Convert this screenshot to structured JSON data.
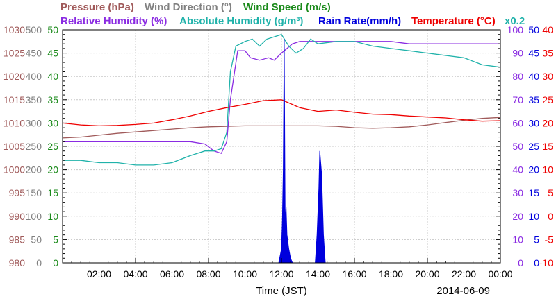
{
  "legend": {
    "row1": [
      {
        "text": "Pressure (hPa)",
        "color": "#a05a5a"
      },
      {
        "text": "Wind Direction (°)",
        "color": "#808080"
      },
      {
        "text": "Wind Speed (m/s)",
        "color": "#1a8a1a"
      }
    ],
    "row2": [
      {
        "text": "Relative Humidity (%)",
        "color": "#8a2be2"
      },
      {
        "text": "Absolute Humidity (g/m³)",
        "color": "#20b2aa"
      },
      {
        "text": "Rain Rate(mm/h)",
        "color": "#0000dd"
      },
      {
        "text": "Temperature (°C)",
        "color": "#ee0000"
      },
      {
        "text": "x0.2",
        "color": "#20b2aa"
      }
    ]
  },
  "chart_data": {
    "type": "line",
    "title": "",
    "xlabel": "Time (JST)",
    "date_label": "2014-06-09",
    "x_ticks": [
      "02:00",
      "04:00",
      "06:00",
      "08:00",
      "10:00",
      "12:00",
      "14:00",
      "16:00",
      "18:00",
      "20:00",
      "22:00",
      "00:00"
    ],
    "x_range_hours": [
      0,
      24
    ],
    "grid": true,
    "axes": {
      "pressure": {
        "label": "Pressure (hPa)",
        "side": "left",
        "range": [
          980,
          1030
        ],
        "ticks": [
          980,
          985,
          990,
          995,
          1000,
          1005,
          1010,
          1015,
          1020,
          1025,
          1030
        ],
        "color": "#a05a5a"
      },
      "wind_direction": {
        "label": "Wind Direction (°)",
        "side": "left",
        "range": [
          0,
          500
        ],
        "ticks": [
          0,
          50,
          100,
          150,
          200,
          250,
          300,
          350,
          400,
          450,
          500
        ],
        "color": "#808080"
      },
      "wind_speed": {
        "label": "Wind Speed (m/s)",
        "side": "left",
        "range": [
          0,
          50
        ],
        "ticks": [
          0,
          5,
          10,
          15,
          20,
          25,
          30,
          35,
          40,
          45,
          50
        ],
        "color": "#1a8a1a"
      },
      "relative_humidity": {
        "label": "Relative Humidity (%)",
        "side": "right",
        "range": [
          0,
          100
        ],
        "ticks": [
          0,
          10,
          20,
          30,
          40,
          50,
          60,
          70,
          80,
          90,
          100
        ],
        "color": "#8a2be2"
      },
      "rain_rate": {
        "label": "Rain Rate(mm/h)",
        "side": "right",
        "range": [
          0,
          50
        ],
        "ticks": [
          0,
          5,
          10,
          15,
          20,
          25,
          30,
          35,
          40,
          45,
          50
        ],
        "color": "#0000dd"
      },
      "temperature": {
        "label": "Temperature (°C)",
        "side": "right",
        "range": [
          -10,
          40
        ],
        "ticks": [
          -10,
          -5,
          0,
          5,
          10,
          15,
          20,
          25,
          30,
          35,
          40
        ],
        "color": "#ee0000"
      }
    },
    "series": [
      {
        "name": "Pressure (hPa)",
        "axis": "pressure",
        "color": "#a05a5a",
        "x": [
          0.0,
          1,
          2,
          3,
          4,
          5,
          6,
          7,
          8,
          9,
          10,
          11,
          12,
          13,
          14,
          15,
          16,
          17,
          18,
          19,
          20,
          21,
          22,
          23,
          24
        ],
        "y": [
          1006.8,
          1007.0,
          1007.4,
          1007.8,
          1008.1,
          1008.4,
          1008.7,
          1009.0,
          1009.2,
          1009.3,
          1009.4,
          1009.4,
          1009.4,
          1009.4,
          1009.4,
          1009.3,
          1009.0,
          1008.9,
          1009.0,
          1009.2,
          1009.6,
          1010.1,
          1010.6,
          1011.0,
          1011.2
        ]
      },
      {
        "name": "Relative Humidity (%)",
        "axis": "relative_humidity",
        "color": "#8a2be2",
        "x": [
          0.0,
          1,
          2,
          3,
          4,
          5,
          6,
          7,
          7.8,
          8.3,
          8.7,
          9.0,
          9.2,
          9.6,
          10.0,
          10.3,
          10.8,
          11.3,
          11.6,
          12.0,
          12.3,
          12.6,
          13.0,
          13.6,
          14.0,
          15.0,
          16.0,
          17.0,
          18.0,
          19.0,
          20.0,
          21.0,
          22.0,
          23.0,
          24.0
        ],
        "y": [
          52,
          52,
          52,
          52,
          52,
          52,
          52,
          52,
          51,
          48,
          47,
          52,
          70,
          91,
          91,
          88,
          87,
          88,
          87,
          90,
          92,
          94,
          95,
          95,
          95,
          95,
          95,
          95,
          95,
          94,
          94,
          94,
          94,
          94,
          94
        ]
      },
      {
        "name": "Absolute Humidity (g/m³)",
        "axis": "relative_humidity",
        "color": "#20b2aa",
        "x": [
          0.0,
          1,
          2,
          3,
          4,
          5,
          6,
          7,
          7.8,
          8.3,
          8.7,
          9.0,
          9.2,
          9.5,
          10.0,
          10.4,
          10.8,
          11.2,
          11.6,
          12.0,
          12.4,
          12.8,
          13.2,
          13.6,
          14.0,
          15.0,
          16.0,
          17.0,
          18.0,
          19.0,
          20.0,
          21.0,
          22.0,
          23.0,
          24.0
        ],
        "y": [
          44,
          44,
          43,
          43,
          42,
          42,
          43,
          46,
          48,
          48,
          49,
          56,
          82,
          93,
          95,
          96,
          93,
          96,
          97,
          98,
          93,
          90,
          92,
          96,
          94,
          95,
          95,
          93,
          92,
          91,
          90,
          89,
          88,
          85,
          84
        ]
      },
      {
        "name": "Temperature (°C)",
        "axis": "temperature",
        "color": "#ee0000",
        "x": [
          0.0,
          1,
          2,
          3,
          4,
          5,
          6,
          7,
          8,
          9,
          10,
          11,
          12,
          13,
          14,
          15,
          16,
          17,
          18,
          19,
          20,
          21,
          22,
          23,
          24
        ],
        "y": [
          20.0,
          19.6,
          19.4,
          19.5,
          19.7,
          20.0,
          20.7,
          21.5,
          22.5,
          23.3,
          24.0,
          24.8,
          25.0,
          23.3,
          22.5,
          22.8,
          22.3,
          21.9,
          21.8,
          21.5,
          21.3,
          21.1,
          20.7,
          20.4,
          20.5
        ]
      },
      {
        "name": "Rain Rate(mm/h)",
        "axis": "rain_rate",
        "color": "#0000dd",
        "kind": "area",
        "x": [
          11.85,
          12.0,
          12.05,
          12.1,
          12.15,
          12.2,
          12.25,
          12.3,
          12.4,
          12.5,
          12.6,
          13.85,
          13.95,
          14.05,
          14.1,
          14.2,
          14.3,
          14.4
        ],
        "y": [
          0,
          3,
          9,
          20,
          48,
          8,
          12,
          6,
          3,
          1,
          0,
          0,
          6,
          16,
          24,
          19,
          6,
          0
        ]
      }
    ]
  }
}
